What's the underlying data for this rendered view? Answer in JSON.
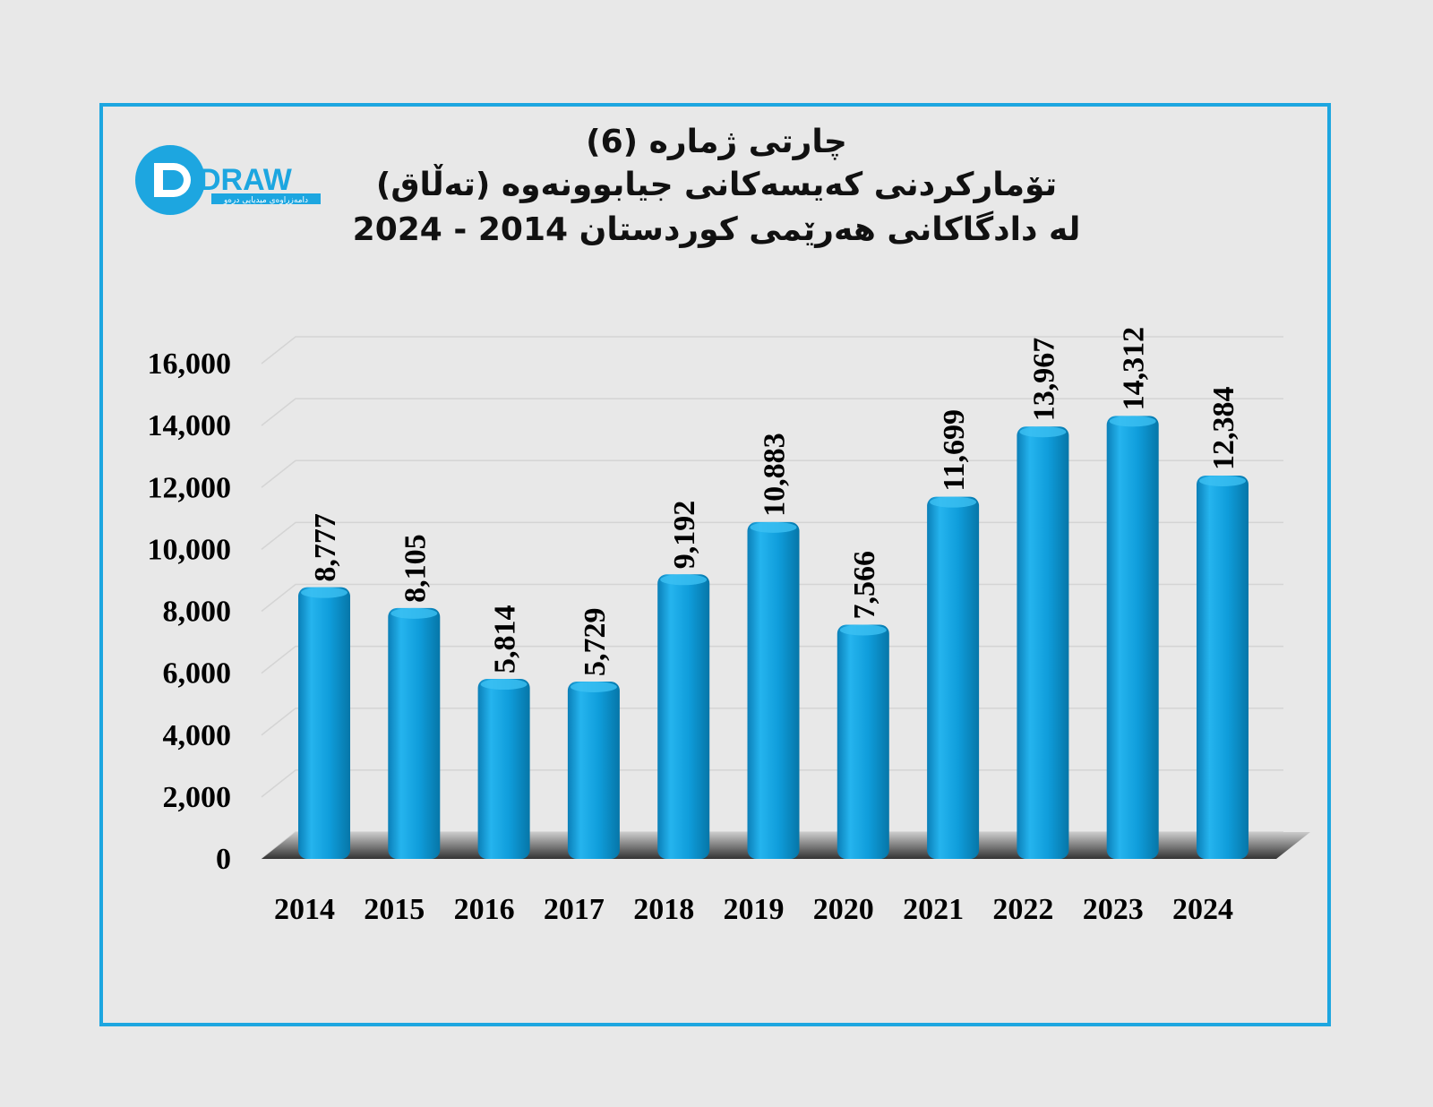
{
  "header": {
    "title_line1": "چارتی ژمارە (6)",
    "title_line2": "تۆمارکردنی کەیسەکانی  جیابوونەوە (تەڵاق)",
    "title_line3": "لە دادگاکانی هەرێمی کوردستان 2014 - 2024"
  },
  "logo": {
    "text": "DRAW",
    "subtext": "دامەزراوەی میدیایی درەو"
  },
  "colors": {
    "bar": "#0f9ddb",
    "border": "#1da6e0"
  },
  "chart_data": {
    "type": "bar",
    "title": "چارتی ژمارە (6) تۆمارکردنی کەیسەکانی جیابوونەوە (تەڵاق) لە دادگاکانی هەرێمی کوردستان 2014 - 2024",
    "categories": [
      "2014",
      "2015",
      "2016",
      "2017",
      "2018",
      "2019",
      "2020",
      "2021",
      "2022",
      "2023",
      "2024"
    ],
    "values": [
      8777,
      8105,
      5814,
      5729,
      9192,
      10883,
      7566,
      11699,
      13967,
      14312,
      12384
    ],
    "labels": [
      "8,777",
      "8,105",
      "5,814",
      "5,729",
      "9,192",
      "10,883",
      "7,566",
      "11,699",
      "13,967",
      "14,312",
      "12,384"
    ],
    "yticks": [
      "0",
      "2,000",
      "4,000",
      "6,000",
      "8,000",
      "10,000",
      "12,000",
      "14,000",
      "16,000"
    ],
    "ylim": [
      0,
      16000
    ],
    "grid": true,
    "xlabel": "",
    "ylabel": ""
  }
}
